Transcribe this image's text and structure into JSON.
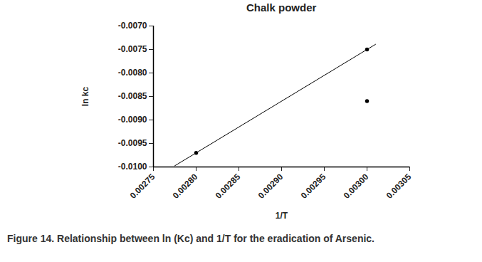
{
  "chart_data": {
    "type": "scatter",
    "title": "Chalk powder",
    "caption": "Figure 14. Relationship between ln (Kc) and 1/T for the eradication of Arsenic.",
    "x_label": "1/T",
    "y_label": "ln kc",
    "xlim": [
      0.00275,
      0.00305
    ],
    "ylim": [
      -0.01,
      -0.007
    ],
    "xticks": [
      {
        "value": 0.00275,
        "label": "0.00275"
      },
      {
        "value": 0.0028,
        "label": "0.00280"
      },
      {
        "value": 0.00285,
        "label": "0.00285"
      },
      {
        "value": 0.0029,
        "label": "0.00290"
      },
      {
        "value": 0.00295,
        "label": "0.00295"
      },
      {
        "value": 0.003,
        "label": "0.00300"
      },
      {
        "value": 0.00305,
        "label": "0.00305"
      }
    ],
    "yticks": [
      {
        "value": -0.007,
        "label": "-0.0070"
      },
      {
        "value": -0.0075,
        "label": "-0.0075"
      },
      {
        "value": -0.008,
        "label": "-0.0080"
      },
      {
        "value": -0.0085,
        "label": "-0.0085"
      },
      {
        "value": -0.009,
        "label": "-0.0090"
      },
      {
        "value": -0.0095,
        "label": "-0.0095"
      },
      {
        "value": -0.01,
        "label": "-0.0100"
      }
    ],
    "grid": false,
    "series": [
      {
        "type": "scatter",
        "marker": "circle",
        "color": "#000000",
        "x": [
          0.0028,
          0.003,
          0.003
        ],
        "values": [
          -0.0097,
          -0.0075,
          -0.0086
        ]
      },
      {
        "type": "line",
        "line_style": "solid",
        "color": "#000000",
        "x": [
          0.002775,
          0.00301
        ],
        "values": [
          -0.009975,
          -0.00739
        ]
      }
    ]
  }
}
